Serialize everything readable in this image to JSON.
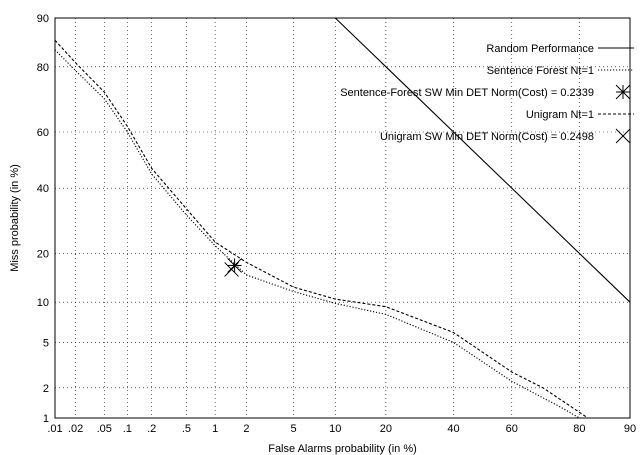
{
  "chart_data": {
    "type": "line",
    "title": "",
    "xlabel": "False Alarms probability (in %)",
    "ylabel": "Miss probability (in %)",
    "x_scale": "normal-deviate (probit)",
    "y_scale": "normal-deviate (probit)",
    "xlim": [
      0.01,
      90
    ],
    "ylim": [
      1,
      90
    ],
    "x_ticks": [
      {
        "value": 0.01,
        "label": ".01"
      },
      {
        "value": 0.02,
        "label": ".02"
      },
      {
        "value": 0.05,
        "label": ".05"
      },
      {
        "value": 0.1,
        "label": ".1"
      },
      {
        "value": 0.2,
        "label": ".2"
      },
      {
        "value": 0.5,
        "label": ".5"
      },
      {
        "value": 1,
        "label": "1"
      },
      {
        "value": 2,
        "label": "2"
      },
      {
        "value": 5,
        "label": "5"
      },
      {
        "value": 10,
        "label": "10"
      },
      {
        "value": 20,
        "label": "20"
      },
      {
        "value": 40,
        "label": "40"
      },
      {
        "value": 60,
        "label": "60"
      },
      {
        "value": 80,
        "label": "80"
      },
      {
        "value": 90,
        "label": "90"
      }
    ],
    "y_ticks": [
      {
        "value": 1,
        "label": "1"
      },
      {
        "value": 2,
        "label": "2"
      },
      {
        "value": 5,
        "label": "5"
      },
      {
        "value": 10,
        "label": "10"
      },
      {
        "value": 20,
        "label": "20"
      },
      {
        "value": 40,
        "label": "40"
      },
      {
        "value": 60,
        "label": "60"
      },
      {
        "value": 80,
        "label": "80"
      },
      {
        "value": 90,
        "label": "90"
      }
    ],
    "grid": true,
    "legend_position": "top-right",
    "series": [
      {
        "name": "Random Performance",
        "style": "solid",
        "points": [
          [
            10,
            90
          ],
          [
            90,
            10
          ]
        ]
      },
      {
        "name": "Sentence Forest Nt=1",
        "style": "dotted",
        "points": [
          [
            0.01,
            84
          ],
          [
            0.02,
            79
          ],
          [
            0.05,
            71
          ],
          [
            0.1,
            60
          ],
          [
            0.2,
            45
          ],
          [
            0.5,
            31
          ],
          [
            1,
            22
          ],
          [
            2,
            15
          ],
          [
            5,
            11.8
          ],
          [
            10,
            9.8
          ],
          [
            20,
            8.2
          ],
          [
            40,
            5
          ],
          [
            60,
            2.3
          ],
          [
            70,
            1.6
          ],
          [
            75,
            1.3
          ],
          [
            80,
            1
          ]
        ]
      },
      {
        "name": "Sentence-Forest SW Min DET Norm(Cost) = 0.2339",
        "style": "marker-asterisk",
        "points": [
          [
            1.55,
            17.1
          ]
        ]
      },
      {
        "name": "Unigram Nt=1",
        "style": "dashed",
        "points": [
          [
            0.01,
            86
          ],
          [
            0.02,
            81
          ],
          [
            0.05,
            73
          ],
          [
            0.1,
            62
          ],
          [
            0.2,
            47
          ],
          [
            0.5,
            33
          ],
          [
            1,
            23
          ],
          [
            2,
            17.8
          ],
          [
            5,
            12.6
          ],
          [
            10,
            10.5
          ],
          [
            20,
            9.3
          ],
          [
            40,
            6
          ],
          [
            60,
            2.8
          ],
          [
            70,
            2
          ],
          [
            78,
            1.3
          ],
          [
            82,
            1
          ]
        ]
      },
      {
        "name": "Unigram SW Min DET Norm(Cost) = 0.2498",
        "style": "marker-x",
        "points": [
          [
            1.45,
            16.2
          ]
        ]
      }
    ]
  }
}
